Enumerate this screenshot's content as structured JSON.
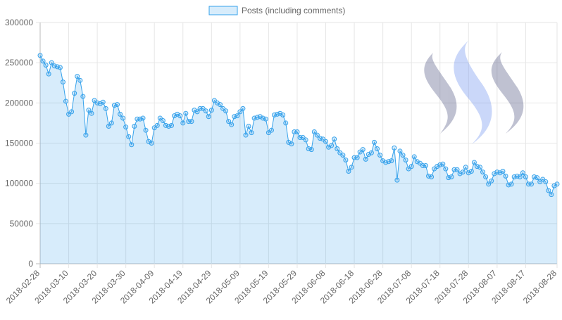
{
  "chart_data": {
    "type": "line",
    "categories": [
      "2018-02-28",
      null,
      null,
      null,
      null,
      null,
      null,
      null,
      null,
      null,
      "2018-03-10",
      null,
      null,
      null,
      null,
      null,
      null,
      null,
      null,
      null,
      "2018-03-20",
      null,
      null,
      null,
      null,
      null,
      null,
      null,
      null,
      null,
      "2018-03-30",
      null,
      null,
      null,
      null,
      null,
      null,
      null,
      null,
      null,
      "2018-04-09",
      null,
      null,
      null,
      null,
      null,
      null,
      null,
      null,
      null,
      "2018-04-19",
      null,
      null,
      null,
      null,
      null,
      null,
      null,
      null,
      null,
      "2018-04-29",
      null,
      null,
      null,
      null,
      null,
      null,
      null,
      null,
      null,
      "2018-05-09",
      null,
      null,
      null,
      null,
      null,
      null,
      null,
      null,
      null,
      "2018-05-19",
      null,
      null,
      null,
      null,
      null,
      null,
      null,
      null,
      null,
      "2018-05-29",
      null,
      null,
      null,
      null,
      null,
      null,
      null,
      null,
      null,
      "2018-06-08",
      null,
      null,
      null,
      null,
      null,
      null,
      null,
      null,
      null,
      "2018-06-18",
      null,
      null,
      null,
      null,
      null,
      null,
      null,
      null,
      null,
      "2018-06-28",
      null,
      null,
      null,
      null,
      null,
      null,
      null,
      null,
      null,
      "2018-07-08",
      null,
      null,
      null,
      null,
      null,
      null,
      null,
      null,
      null,
      "2018-07-18",
      null,
      null,
      null,
      null,
      null,
      null,
      null,
      null,
      null,
      "2018-07-28",
      null,
      null,
      null,
      null,
      null,
      null,
      null,
      null,
      null,
      "2018-08-07",
      null,
      null,
      null,
      null,
      null,
      null,
      null,
      null,
      null,
      "2018-08-17",
      null,
      null,
      null,
      null,
      null,
      null,
      null,
      null,
      null,
      null,
      "2018-08-28"
    ],
    "series": [
      {
        "name": "Posts (including comments)",
        "color": "#36a2eb",
        "fill": "rgba(54,162,235,0.2)",
        "values": [
          259000,
          252000,
          247000,
          236000,
          250000,
          246000,
          245000,
          244000,
          226000,
          202000,
          186000,
          189000,
          212000,
          233000,
          228000,
          208000,
          160000,
          191000,
          187000,
          203000,
          200000,
          199000,
          201000,
          193000,
          171000,
          175000,
          197000,
          198000,
          186000,
          181000,
          170000,
          158000,
          148000,
          171000,
          180000,
          180000,
          181000,
          166000,
          152000,
          150000,
          169000,
          172000,
          181000,
          178000,
          172000,
          171000,
          172000,
          184000,
          186000,
          184000,
          175000,
          187000,
          177000,
          177000,
          191000,
          189000,
          193000,
          193000,
          190000,
          183000,
          191000,
          203000,
          200000,
          198000,
          193000,
          190000,
          177000,
          173000,
          183000,
          184000,
          189000,
          193000,
          160000,
          171000,
          163000,
          181000,
          182000,
          183000,
          181000,
          180000,
          163000,
          166000,
          185000,
          186000,
          187000,
          185000,
          175000,
          151000,
          149000,
          164000,
          164000,
          157000,
          157000,
          154000,
          143000,
          142000,
          164000,
          160000,
          156000,
          155000,
          152000,
          145000,
          147000,
          155000,
          143000,
          138000,
          135000,
          129000,
          115000,
          120000,
          132000,
          132000,
          139000,
          142000,
          130000,
          136000,
          138000,
          151000,
          143000,
          135000,
          128000,
          126000,
          127000,
          128000,
          144000,
          104000,
          140000,
          135000,
          129000,
          118000,
          121000,
          133000,
          127000,
          125000,
          122000,
          122000,
          109000,
          108000,
          118000,
          121000,
          123000,
          124000,
          118000,
          107000,
          108000,
          117000,
          117000,
          112000,
          114000,
          120000,
          113000,
          115000,
          126000,
          121000,
          120000,
          114000,
          108000,
          99000,
          103000,
          112000,
          114000,
          113000,
          115000,
          109000,
          98000,
          99000,
          108000,
          109000,
          108000,
          113000,
          108000,
          99000,
          99000,
          108000,
          107000,
          102000,
          105000,
          102000,
          91000,
          86000,
          97000,
          99000
        ]
      }
    ],
    "ylim": [
      0,
      300000
    ],
    "yticks": [
      0,
      50000,
      100000,
      150000,
      200000,
      250000,
      300000
    ],
    "grid": true,
    "legend": "top"
  }
}
